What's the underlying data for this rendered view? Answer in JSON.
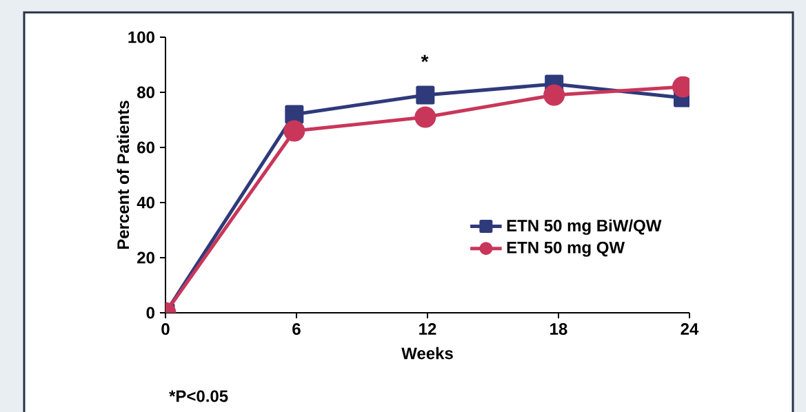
{
  "chart_data": {
    "type": "line",
    "xlabel": "Weeks",
    "ylabel": "Percent of Patients",
    "xlim": [
      0,
      24
    ],
    "xticks": [
      0,
      6,
      12,
      18,
      24
    ],
    "ylim": [
      0,
      100
    ],
    "yticks": [
      0,
      20,
      40,
      60,
      80,
      100
    ],
    "x": [
      0,
      5.9,
      11.9,
      17.8,
      23.7
    ],
    "series": [
      {
        "name": "ETN 50 mg BiW/QW",
        "color": "#2e3a7a",
        "marker": "square",
        "values": [
          0,
          72,
          79,
          83,
          78
        ]
      },
      {
        "name": "ETN 50 mg QW",
        "color": "#c8375a",
        "marker": "circle",
        "values": [
          0,
          66,
          71,
          79,
          82
        ]
      }
    ],
    "annotations": [
      "*",
      "*P<0.05"
    ],
    "legend": "right",
    "grid": false,
    "line_style": "solid"
  }
}
